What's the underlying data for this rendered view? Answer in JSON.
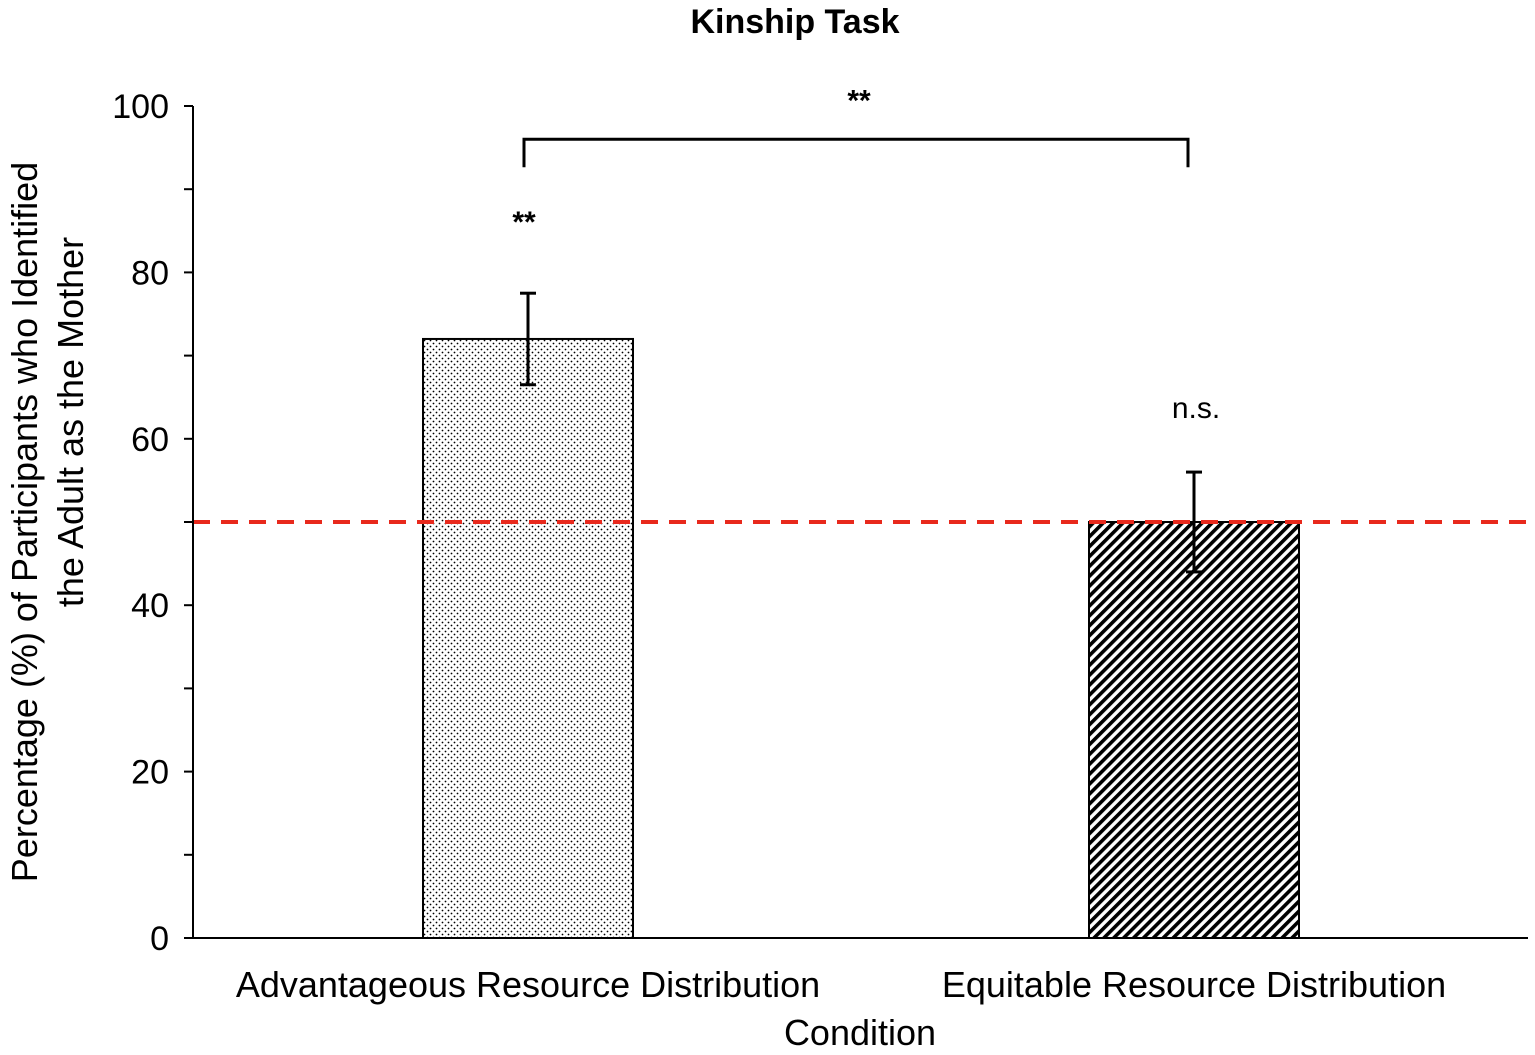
{
  "chart_data": {
    "type": "bar",
    "title": "Kinship Task",
    "xlabel": "Condition",
    "ylabel_lines": [
      "Percentage (%) of Participants who Identified",
      "the Adult as the Mother"
    ],
    "ylim": [
      0,
      100
    ],
    "y_ticks": [
      0,
      20,
      40,
      60,
      80,
      100
    ],
    "y_tick_labels": [
      "0",
      "20",
      "40",
      "60",
      "80",
      "100"
    ],
    "y_minor_step": 10,
    "categories": [
      "Advantageous Resource Distribution",
      "Equitable Resource Distribution"
    ],
    "values": [
      72,
      50
    ],
    "error_bars": [
      {
        "low": 66.5,
        "high": 77.5
      },
      {
        "low": 44,
        "high": 56
      }
    ],
    "bar_patterns": [
      "dots",
      "diagonal-hatch"
    ],
    "reference_line": {
      "value": 50,
      "color": "#e8291c",
      "style": "dashed"
    },
    "bar_annotations": [
      "**",
      "n.s."
    ],
    "comparison_bracket": {
      "from_category": 0,
      "to_category": 1,
      "y": 96,
      "label": "**"
    },
    "grid": false,
    "legend": "none"
  }
}
